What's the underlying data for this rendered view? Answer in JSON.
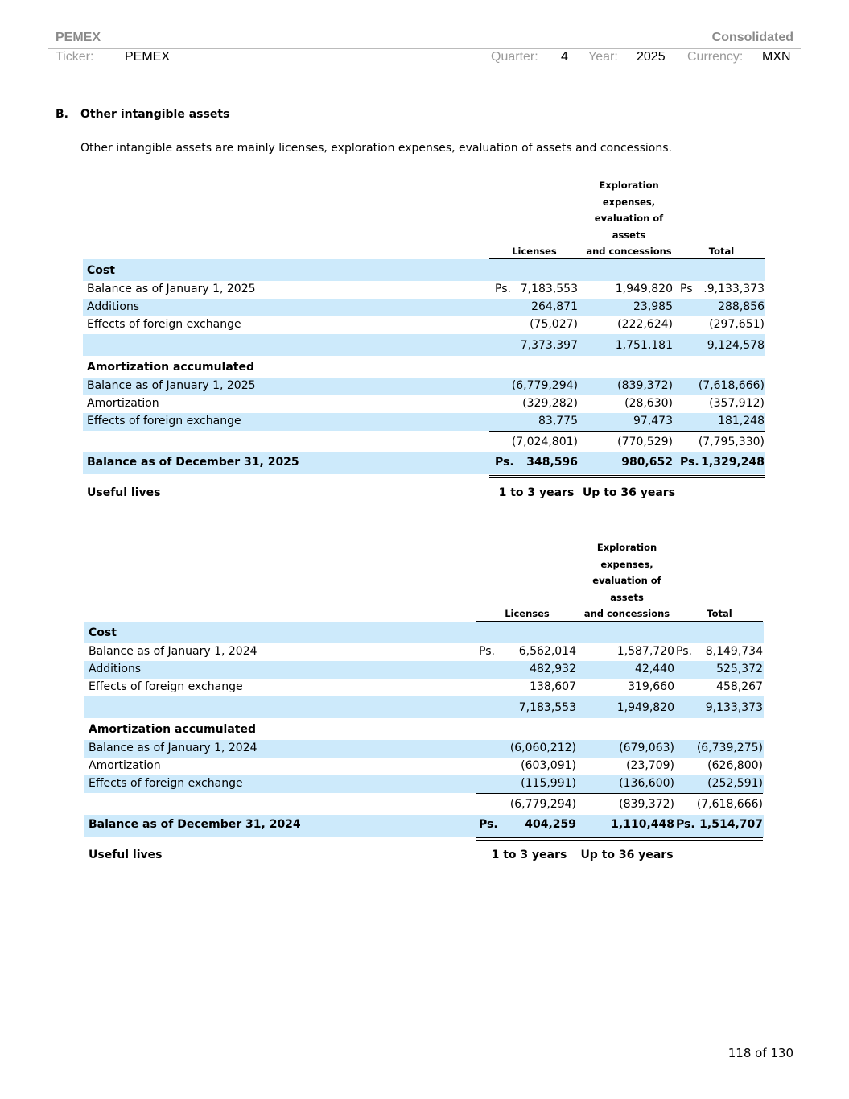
{
  "header": {
    "company": "PEMEX",
    "scope": "Consolidated",
    "ticker_label": "Ticker:",
    "ticker": "PEMEX",
    "quarter_label": "Quarter:",
    "quarter": "4",
    "year_label": "Year:",
    "year": "2025",
    "currency_label": "Currency:",
    "currency": "MXN"
  },
  "section": {
    "number": "B.",
    "title": "Other intangible assets",
    "intro": "Other intangible assets are mainly licenses, exploration expenses, evaluation of assets and concessions."
  },
  "tables": [
    {
      "columns": {
        "licenses": "Licenses",
        "exploration": [
          "Exploration",
          "expenses,",
          "evaluation of",
          "assets",
          "and concessions"
        ],
        "total": "Total"
      },
      "rows": [
        {
          "label": "Cost",
          "bold": true,
          "shade": true,
          "kind": "head"
        },
        {
          "label": "Balance as of January 1, 2025",
          "ps1": "Ps.",
          "v1": "7,183,553",
          "v2": "1,949,820",
          "ps3": "Ps",
          "v3": ".9,133,373"
        },
        {
          "label": "Additions",
          "v1": "264,871",
          "v2": "23,985",
          "v3": "288,856",
          "shade": true
        },
        {
          "label": "Effects of foreign exchange",
          "v1": "(75,027)",
          "v2": "(222,624)",
          "v3": "(297,651)"
        },
        {
          "label": "",
          "v1": "7,373,397",
          "v2": "1,751,181",
          "v3": "9,124,578",
          "shade": true,
          "kind": "sub"
        },
        {
          "label": "Amortization accumulated",
          "bold": true,
          "kind": "head2"
        },
        {
          "label": "Balance as of January 1, 2025",
          "v1": "(6,779,294)",
          "v2": "(839,372)",
          "v3": "(7,618,666)",
          "shade": true
        },
        {
          "label": "Amortization",
          "v1": "(329,282)",
          "v2": "(28,630)",
          "v3": "(357,912)"
        },
        {
          "label": "Effects of foreign exchange",
          "v1": "83,775",
          "v2": "97,473",
          "v3": "181,248",
          "shade": true
        },
        {
          "label": "",
          "v1": "(7,024,801)",
          "v2": "(770,529)",
          "v3": "(7,795,330)",
          "kind": "sub"
        },
        {
          "label": "Balance as of December 31, 2025",
          "ps1": "Ps.",
          "v1": "348,596",
          "v2": "980,652",
          "ps3": "Ps.",
          "v3": "1,329,248",
          "bold": true,
          "shade": true,
          "kind": "total"
        },
        {
          "label": "Useful lives",
          "v1": "1 to 3 years",
          "v2": "Up to 36 years",
          "bold": true,
          "kind": "useful"
        }
      ]
    },
    {
      "columns": {
        "licenses": "Licenses",
        "exploration": [
          "Exploration",
          "expenses,",
          "evaluation of",
          "assets",
          "and concessions"
        ],
        "total": "Total"
      },
      "rows": [
        {
          "label": "Cost",
          "bold": true,
          "shade": true,
          "kind": "head"
        },
        {
          "label": "Balance as of January 1, 2024",
          "ps1": "Ps.",
          "v1": "6,562,014",
          "v2": "1,587,720",
          "ps3": "Ps.",
          "v3": "8,149,734"
        },
        {
          "label": "Additions",
          "v1": "482,932",
          "v2": "42,440",
          "v3": "525,372",
          "shade": true
        },
        {
          "label": "Effects of foreign exchange",
          "v1": "138,607",
          "v2": "319,660",
          "v3": "458,267"
        },
        {
          "label": "",
          "v1": "7,183,553",
          "v2": "1,949,820",
          "v3": "9,133,373",
          "shade": true,
          "kind": "sub"
        },
        {
          "label": "Amortization accumulated",
          "bold": true,
          "kind": "head2"
        },
        {
          "label": "Balance as of January 1, 2024",
          "v1": "(6,060,212)",
          "v2": "(679,063)",
          "v3": "(6,739,275)",
          "shade": true
        },
        {
          "label": "Amortization",
          "v1": "(603,091)",
          "v2": "(23,709)",
          "v3": "(626,800)"
        },
        {
          "label": "Effects of foreign exchange",
          "v1": "(115,991)",
          "v2": "(136,600)",
          "v3": "(252,591)",
          "shade": true
        },
        {
          "label": "",
          "v1": "(6,779,294)",
          "v2": "(839,372)",
          "v3": "(7,618,666)",
          "kind": "sub"
        },
        {
          "label": "Balance as of December 31, 2024",
          "ps1": "Ps.",
          "v1": "404,259",
          "v2": "1,110,448",
          "ps3": "Ps.",
          "v3": "1,514,707",
          "bold": true,
          "shade": true,
          "kind": "total"
        },
        {
          "label": "Useful lives",
          "v1": "1 to 3 years",
          "v2": "Up to 36 years",
          "bold": true,
          "kind": "useful"
        }
      ]
    }
  ],
  "footer": {
    "page": "118 of 130"
  }
}
